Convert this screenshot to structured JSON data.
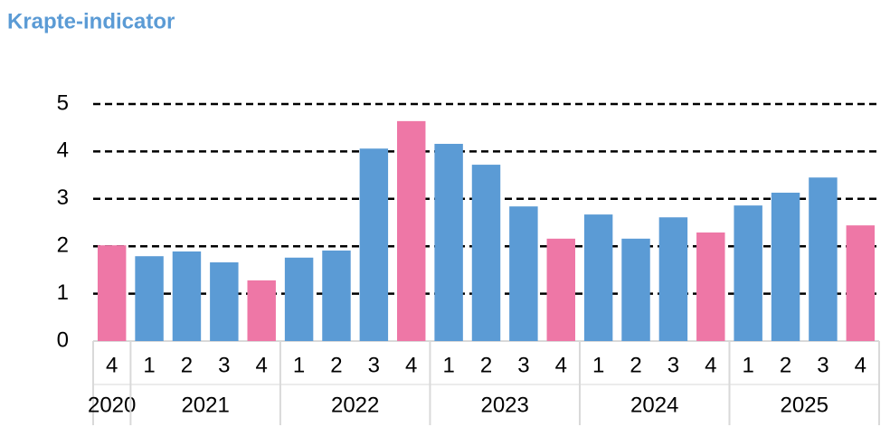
{
  "chart_data": {
    "type": "bar",
    "title": "Krapte-indicator",
    "groups": [
      {
        "name": "2020",
        "categories": [
          "4"
        ],
        "values": [
          2.02
        ],
        "colors": [
          "#ee77a6"
        ]
      },
      {
        "name": "2021",
        "categories": [
          "1",
          "2",
          "3",
          "4"
        ],
        "values": [
          1.79,
          1.89,
          1.66,
          1.28
        ],
        "colors": [
          "#5b9bd5",
          "#5b9bd5",
          "#5b9bd5",
          "#ee77a6"
        ]
      },
      {
        "name": "2022",
        "categories": [
          "1",
          "2",
          "3",
          "4"
        ],
        "values": [
          1.76,
          1.91,
          4.06,
          4.64
        ],
        "colors": [
          "#5b9bd5",
          "#5b9bd5",
          "#5b9bd5",
          "#ee77a6"
        ]
      },
      {
        "name": "2023",
        "categories": [
          "1",
          "2",
          "3",
          "4"
        ],
        "values": [
          4.16,
          3.72,
          2.84,
          2.16
        ],
        "colors": [
          "#5b9bd5",
          "#5b9bd5",
          "#5b9bd5",
          "#ee77a6"
        ]
      },
      {
        "name": "2024",
        "categories": [
          "1",
          "2",
          "3",
          "4"
        ],
        "values": [
          2.67,
          2.16,
          2.61,
          2.29
        ],
        "colors": [
          "#5b9bd5",
          "#5b9bd5",
          "#5b9bd5",
          "#ee77a6"
        ]
      },
      {
        "name": "2025",
        "categories": [
          "1",
          "2",
          "3",
          "4"
        ],
        "values": [
          2.86,
          3.13,
          3.45,
          2.44
        ],
        "colors": [
          "#5b9bd5",
          "#5b9bd5",
          "#5b9bd5",
          "#ee77a6"
        ]
      }
    ],
    "ylim": [
      0,
      5
    ],
    "yticks": [
      0,
      1,
      2,
      3,
      4,
      5
    ],
    "grid": true
  }
}
